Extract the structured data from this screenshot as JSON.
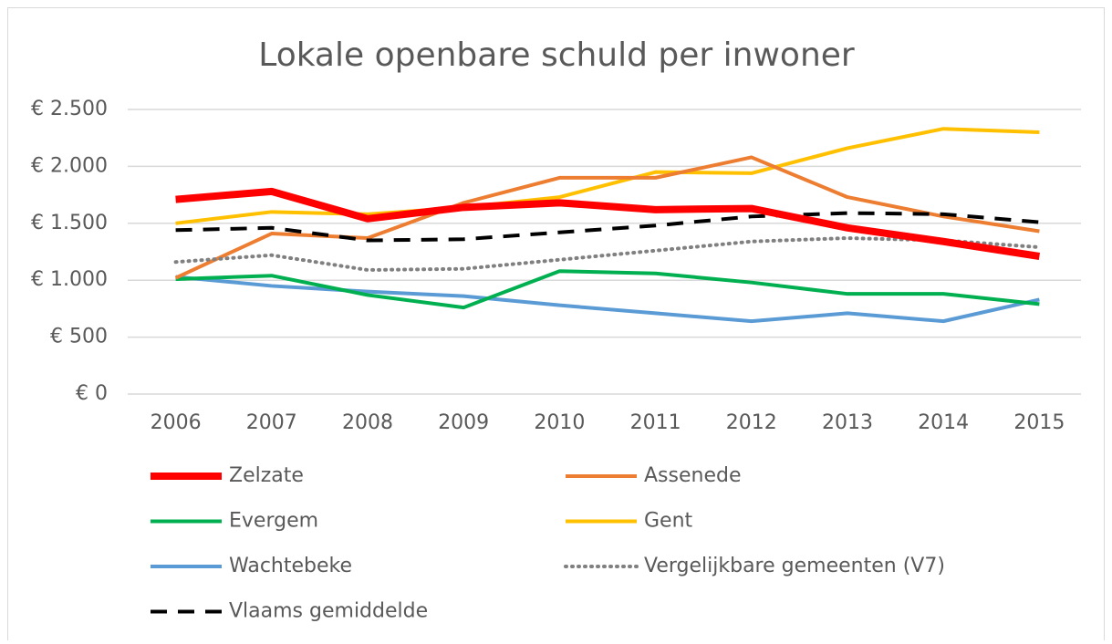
{
  "chart_data": {
    "type": "line",
    "title": "Lokale openbare schuld per inwoner",
    "categories": [
      "2006",
      "2007",
      "2008",
      "2009",
      "2010",
      "2011",
      "2012",
      "2013",
      "2014",
      "2015"
    ],
    "series": [
      {
        "name": "Zelzate",
        "color": "#ff0000",
        "style": "thick",
        "values": [
          1710,
          1780,
          1540,
          1640,
          1680,
          1620,
          1630,
          1460,
          1340,
          1210
        ]
      },
      {
        "name": "Assenede",
        "color": "#ed7d31",
        "style": "solid",
        "values": [
          1020,
          1410,
          1370,
          1680,
          1900,
          1900,
          2080,
          1730,
          1560,
          1430
        ]
      },
      {
        "name": "Evergem",
        "color": "#00b050",
        "style": "solid",
        "values": [
          1010,
          1040,
          870,
          760,
          1080,
          1060,
          980,
          880,
          880,
          790
        ]
      },
      {
        "name": "Gent",
        "color": "#ffc000",
        "style": "solid",
        "values": [
          1500,
          1600,
          1580,
          1640,
          1730,
          1950,
          1940,
          2160,
          2330,
          2300
        ]
      },
      {
        "name": "Wachtebeke",
        "color": "#5b9bd5",
        "style": "solid",
        "values": [
          1030,
          950,
          900,
          860,
          780,
          710,
          640,
          710,
          640,
          830
        ]
      },
      {
        "name": "Vergelijkbare gemeenten (V7)",
        "color": "#808080",
        "style": "dotted",
        "values": [
          1160,
          1220,
          1090,
          1100,
          1180,
          1260,
          1340,
          1370,
          1350,
          1290
        ]
      },
      {
        "name": "Vlaams gemiddelde",
        "color": "#000000",
        "style": "dashed",
        "values": [
          1440,
          1460,
          1350,
          1360,
          1420,
          1480,
          1560,
          1590,
          1580,
          1510
        ]
      }
    ],
    "ylim": [
      0,
      2500
    ],
    "yticks": [
      {
        "value": 0,
        "label": "€ 0"
      },
      {
        "value": 500,
        "label": "€ 500"
      },
      {
        "value": 1000,
        "label": "€ 1.000"
      },
      {
        "value": 1500,
        "label": "€ 1.500"
      },
      {
        "value": 2000,
        "label": "€ 2.000"
      },
      {
        "value": 2500,
        "label": "€ 2.500"
      }
    ],
    "grid": true,
    "legend": "bottom"
  }
}
